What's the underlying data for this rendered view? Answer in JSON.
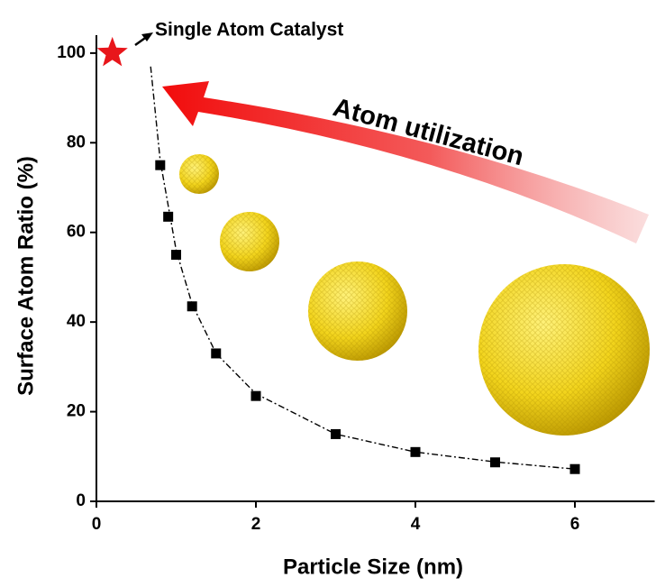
{
  "chart_data": {
    "type": "scatter",
    "xlabel": "Particle Size (nm)",
    "ylabel": "Surface Atom Ratio (%)",
    "xlim": [
      0,
      7
    ],
    "ylim": [
      0,
      104
    ],
    "xticks": [
      0,
      2,
      4,
      6
    ],
    "yticks": [
      0,
      20,
      40,
      60,
      80,
      100
    ],
    "series": [
      {
        "marker": "square",
        "color": "#000000",
        "x": [
          0.8,
          0.9,
          1.0,
          1.2,
          1.5,
          2,
          3,
          4,
          5,
          6
        ],
        "values": [
          75,
          63.5,
          55,
          43.5,
          33,
          23.5,
          15,
          11,
          8.7,
          7.2
        ]
      },
      {
        "marker": "star",
        "color": "#e8161b",
        "x": [
          0.2
        ],
        "values": [
          100
        ]
      },
      {
        "marker": "dashdot-line",
        "color": "#000000",
        "x": [
          0.68,
          0.8,
          1.0,
          1.2,
          1.5,
          2,
          3,
          4,
          5,
          6
        ],
        "values": [
          97,
          76,
          56,
          44,
          33,
          24,
          15,
          11,
          8.8,
          7.2
        ]
      }
    ],
    "annotations": [
      {
        "text": "Single Atom Catalyst"
      },
      {
        "text": "Atom utilization"
      }
    ]
  }
}
